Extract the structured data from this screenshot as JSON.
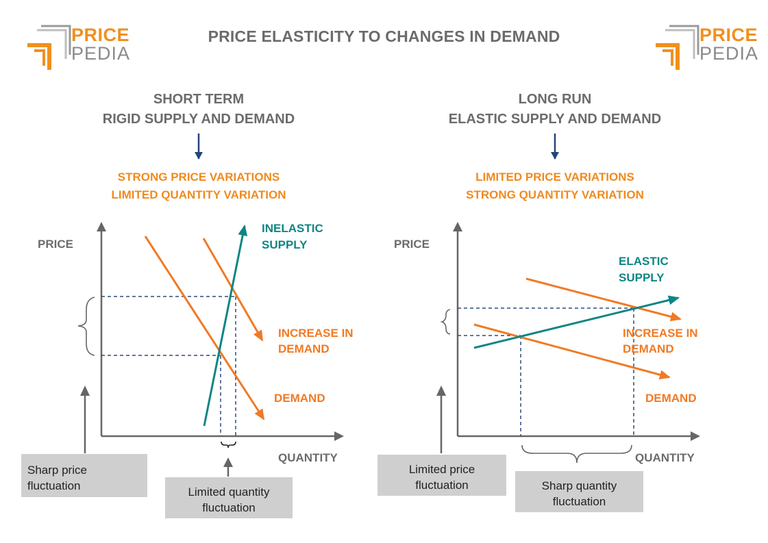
{
  "logo": {
    "line1": "PRICE",
    "line2": "PEDIA"
  },
  "title": "PRICE ELASTICITY TO CHANGES IN DEMAND",
  "left": {
    "heading_line1": "SHORT TERM",
    "heading_line2": "RIGID SUPPLY AND DEMAND",
    "sub_line1": "STRONG PRICE VARIATIONS",
    "sub_line2": "LIMITED QUANTITY VARIATION",
    "y_label": "PRICE",
    "x_label": "QUANTITY",
    "supply_label_1": "INELASTIC",
    "supply_label_2": "SUPPLY",
    "increase_label_1": "INCREASE IN",
    "increase_label_2": "DEMAND",
    "demand_label": "DEMAND",
    "note_price_1": "Sharp price",
    "note_price_2": "fluctuation",
    "note_qty_1": "Limited quantity",
    "note_qty_2": "fluctuation"
  },
  "right": {
    "heading_line1": "LONG RUN",
    "heading_line2": "ELASTIC SUPPLY AND DEMAND",
    "sub_line1": "LIMITED PRICE VARIATIONS",
    "sub_line2": "STRONG QUANTITY VARIATION",
    "y_label": "PRICE",
    "x_label": "QUANTITY",
    "supply_label_1": "ELASTIC",
    "supply_label_2": "SUPPLY",
    "increase_label_1": "INCREASE IN",
    "increase_label_2": "DEMAND",
    "demand_label": "DEMAND",
    "note_price_1": "Limited price",
    "note_price_2": "fluctuation",
    "note_qty_1": "Sharp quantity",
    "note_qty_2": "fluctuation"
  },
  "colors": {
    "orange": "#f07a25",
    "teal": "#0f8583",
    "axis": "#666666",
    "dashed": "#2d4a7a",
    "arrow_blue": "#24447a"
  }
}
